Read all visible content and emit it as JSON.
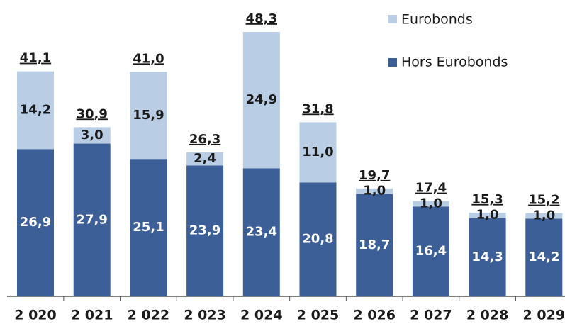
{
  "chart_data": {
    "type": "stacked-bar",
    "categories": [
      "2 020",
      "2 021",
      "2 022",
      "2 023",
      "2 024",
      "2 025",
      "2 026",
      "2 027",
      "2 028",
      "2 029"
    ],
    "series": [
      {
        "name": "Hors Eurobonds",
        "color": "#3c5f97",
        "values": [
          26.9,
          27.9,
          25.1,
          23.9,
          23.4,
          20.8,
          18.7,
          16.4,
          14.3,
          14.2
        ],
        "value_labels": [
          "26,9",
          "27,9",
          "25,1",
          "23,9",
          "23,4",
          "20,8",
          "18,7",
          "16,4",
          "14,3",
          "14,2"
        ]
      },
      {
        "name": "Eurobonds",
        "color": "#b9cde5",
        "values": [
          14.2,
          3.0,
          15.9,
          2.4,
          24.9,
          11.0,
          1.0,
          1.0,
          1.0,
          1.0
        ],
        "value_labels": [
          "14,2",
          "3,0",
          "15,9",
          "2,4",
          "24,9",
          "11,0",
          "1,0",
          "1,0",
          "1,0",
          "1,0"
        ]
      }
    ],
    "totals": [
      41.1,
      30.9,
      41.0,
      26.3,
      48.3,
      31.8,
      19.7,
      17.4,
      15.3,
      15.2
    ],
    "total_labels": [
      "41,1",
      "30,9",
      "41,0",
      "26,3",
      "48,3",
      "31,8",
      "19,7",
      "17,4",
      "15,3",
      "15,2"
    ]
  }
}
